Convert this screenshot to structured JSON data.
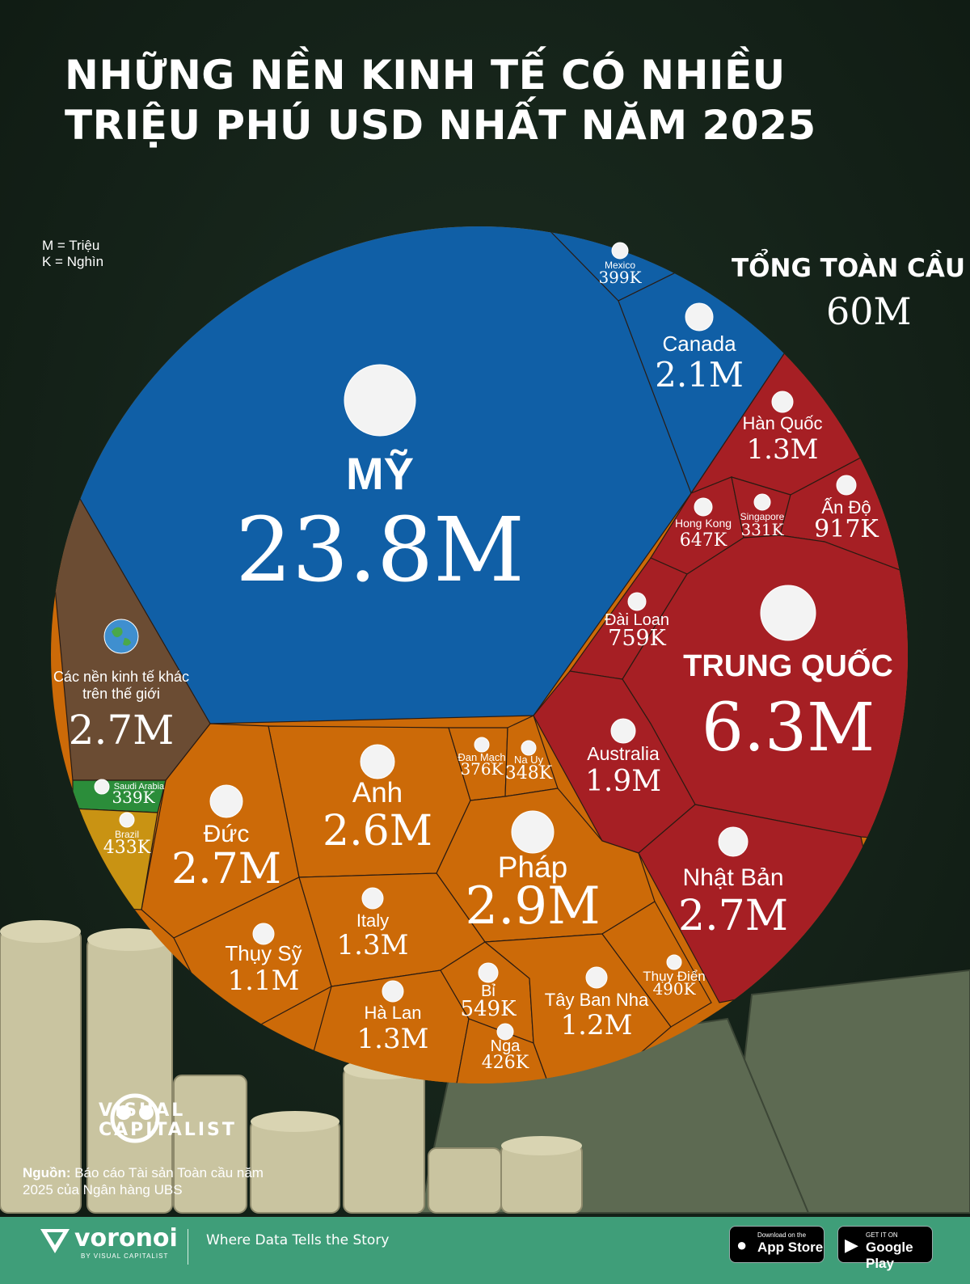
{
  "title": "NHỮNG NỀN KINH TẾ CÓ NHIỀU TRIỆU PHÚ USD NHẤT NĂM 2025",
  "legend_note": {
    "m": "M = Triệu",
    "k": "K = Nghìn"
  },
  "global_total": {
    "label": "TỔNG TOÀN CẦU",
    "value": "60M"
  },
  "source": {
    "label": "Nguồn:",
    "text": "Báo cáo Tài sản Toàn cầu năm 2025 của Ngân hàng UBS"
  },
  "brand": {
    "publisher": "VISUAL CAPITALIST",
    "platform": "voronoi",
    "platform_sub": "BY VISUAL CAPITALIST",
    "tagline": "Where Data Tells the Story"
  },
  "stores": {
    "apple": {
      "small": "Download on the",
      "big": "App Store"
    },
    "google": {
      "small": "GET IT ON",
      "big": "Google Play"
    }
  },
  "colors": {
    "americas": "#105fa6",
    "asia": "#a61f24",
    "europe": "#cc6a08",
    "other": "#6b4c33",
    "saudi": "#2b8d3a",
    "brazil": "#c99313"
  },
  "chart_data": {
    "type": "voronoi",
    "unit": "millionaires",
    "total": 60000000,
    "cells": [
      {
        "label": "MỸ",
        "value": 23800000,
        "display": "23.8M",
        "region": "americas",
        "icon": "us-flag"
      },
      {
        "label": "Canada",
        "value": 2100000,
        "display": "2.1M",
        "region": "americas",
        "icon": "canada-flag"
      },
      {
        "label": "Mexico",
        "value": 399000,
        "display": "399K",
        "region": "americas",
        "icon": "mexico-flag"
      },
      {
        "label": "TRUNG QUỐC",
        "value": 6300000,
        "display": "6.3M",
        "region": "asia",
        "icon": "china-flag"
      },
      {
        "label": "Nhật Bản",
        "value": 2700000,
        "display": "2.7M",
        "region": "asia",
        "icon": "japan-flag"
      },
      {
        "label": "Australia",
        "value": 1900000,
        "display": "1.9M",
        "region": "asia",
        "icon": "australia-flag"
      },
      {
        "label": "Hàn Quốc",
        "value": 1300000,
        "display": "1.3M",
        "region": "asia",
        "icon": "south-korea-flag"
      },
      {
        "label": "Ấn Độ",
        "value": 917000,
        "display": "917K",
        "region": "asia",
        "icon": "india-flag"
      },
      {
        "label": "Đài Loan",
        "value": 759000,
        "display": "759K",
        "region": "asia",
        "icon": "taiwan-flag"
      },
      {
        "label": "Hong Kong",
        "value": 647000,
        "display": "647K",
        "region": "asia",
        "icon": "hong-kong-flag"
      },
      {
        "label": "Singapore",
        "value": 331000,
        "display": "331K",
        "region": "asia",
        "icon": "singapore-flag"
      },
      {
        "label": "Pháp",
        "value": 2900000,
        "display": "2.9M",
        "region": "europe",
        "icon": "france-flag"
      },
      {
        "label": "Đức",
        "value": 2700000,
        "display": "2.7M",
        "region": "europe",
        "icon": "germany-flag"
      },
      {
        "label": "Anh",
        "value": 2600000,
        "display": "2.6M",
        "region": "europe",
        "icon": "uk-flag"
      },
      {
        "label": "Italy",
        "value": 1300000,
        "display": "1.3M",
        "region": "europe",
        "icon": "italy-flag"
      },
      {
        "label": "Hà Lan",
        "value": 1300000,
        "display": "1.3M",
        "region": "europe",
        "icon": "netherlands-flag"
      },
      {
        "label": "Tây Ban Nha",
        "value": 1200000,
        "display": "1.2M",
        "region": "europe",
        "icon": "spain-flag"
      },
      {
        "label": "Thụy Sỹ",
        "value": 1100000,
        "display": "1.1M",
        "region": "europe",
        "icon": "switzerland-flag"
      },
      {
        "label": "Bỉ",
        "value": 549000,
        "display": "549K",
        "region": "europe",
        "icon": "belgium-flag"
      },
      {
        "label": "Thụy Điển",
        "value": 490000,
        "display": "490K",
        "region": "europe",
        "icon": "sweden-flag"
      },
      {
        "label": "Nga",
        "value": 426000,
        "display": "426K",
        "region": "europe",
        "icon": "russia-flag"
      },
      {
        "label": "Đan Mạch",
        "value": 376000,
        "display": "376K",
        "region": "europe",
        "icon": "denmark-flag"
      },
      {
        "label": "Na Uy",
        "value": 348000,
        "display": "348K",
        "region": "europe",
        "icon": "norway-flag"
      },
      {
        "label": "Các nền kinh tế khác trên thế giới",
        "value": 2700000,
        "display": "2.7M",
        "region": "other",
        "icon": "globe-icon"
      },
      {
        "label": "Brazil",
        "value": 433000,
        "display": "433K",
        "region": "brazil",
        "icon": "brazil-flag"
      },
      {
        "label": "Saudi Arabia",
        "value": 339000,
        "display": "339K",
        "region": "saudi",
        "icon": "saudi-flag"
      }
    ]
  }
}
